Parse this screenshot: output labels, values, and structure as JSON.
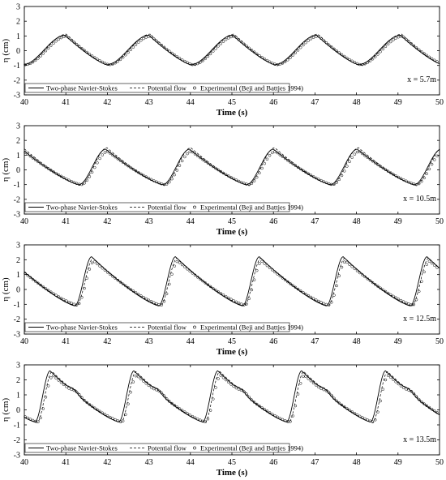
{
  "chart_data": [
    {
      "type": "line",
      "xlabel": "Time (s)",
      "ylabel": "η (cm)",
      "xlim": [
        40,
        50
      ],
      "ylim": [
        -3,
        3
      ],
      "xticks": [
        "40",
        "41",
        "42",
        "43",
        "44",
        "45",
        "46",
        "47",
        "48",
        "49",
        "50"
      ],
      "yticks": [
        "-3",
        "-2",
        "-1",
        "0",
        "1",
        "2",
        "3"
      ],
      "annotation": "x = 5.7m",
      "legend": {
        "position": "bottom-left",
        "entries": [
          "Two-phase Navier-Stokes",
          "Potential flow",
          "Experimental (Beji and Battjes 1994)"
        ]
      },
      "wave": {
        "period": 2.02,
        "first_peak_time": 40.98,
        "peak": 1.05,
        "trough": -0.95,
        "rise_fraction": 0.5,
        "secondary": 0
      },
      "series": [
        {
          "name": "Two-phase Navier-Stokes",
          "style": "solid",
          "peak": 1.05,
          "trough": -0.95,
          "shift": 0
        },
        {
          "name": "Potential flow",
          "style": "dashed",
          "peak": 1.12,
          "trough": -1.0,
          "shift": 0.03
        },
        {
          "name": "Experimental (Beji and Battjes 1994)",
          "style": "markers",
          "peak": 0.98,
          "trough": -0.95,
          "shift": 0.05
        }
      ]
    },
    {
      "type": "line",
      "xlabel": "Time (s)",
      "ylabel": "η (cm)",
      "xlim": [
        40,
        50
      ],
      "ylim": [
        -3,
        3
      ],
      "xticks": [
        "40",
        "41",
        "42",
        "43",
        "44",
        "45",
        "46",
        "47",
        "48",
        "49",
        "50"
      ],
      "yticks": [
        "-3",
        "-2",
        "-1",
        "0",
        "1",
        "2",
        "3"
      ],
      "annotation": "x = 10.5m",
      "legend": {
        "position": "bottom-left",
        "entries": [
          "Two-phase Navier-Stokes",
          "Potential flow",
          "Experimental (Beji and Battjes 1994)"
        ]
      },
      "wave": {
        "period": 2.02,
        "first_peak_time": 41.96,
        "peak": 1.4,
        "trough": -1.0,
        "rise_fraction": 0.32,
        "secondary": 0
      },
      "series": [
        {
          "name": "Two-phase Navier-Stokes",
          "style": "solid",
          "peak": 1.4,
          "trough": -1.0,
          "shift": 0
        },
        {
          "name": "Potential flow",
          "style": "dashed",
          "peak": 1.5,
          "trough": -1.05,
          "shift": 0.03
        },
        {
          "name": "Experimental (Beji and Battjes 1994)",
          "style": "markers",
          "peak": 1.25,
          "trough": -1.0,
          "shift": 0.05
        }
      ]
    },
    {
      "type": "line",
      "xlabel": "Time (s)",
      "ylabel": "η (cm)",
      "xlim": [
        40,
        50
      ],
      "ylim": [
        -3,
        3
      ],
      "xticks": [
        "40",
        "41",
        "42",
        "43",
        "44",
        "45",
        "46",
        "47",
        "48",
        "49",
        "50"
      ],
      "yticks": [
        "-3",
        "-2",
        "-1",
        "0",
        "1",
        "2",
        "3"
      ],
      "annotation": "x = 12.5m",
      "legend": {
        "position": "bottom-left",
        "entries": [
          "Two-phase Navier-Stokes",
          "Potential flow",
          "Experimental (Beji and Battjes 1994)"
        ]
      },
      "wave": {
        "period": 2.02,
        "first_peak_time": 41.62,
        "peak": 2.2,
        "trough": -1.1,
        "rise_fraction": 0.2,
        "secondary": 0
      },
      "series": [
        {
          "name": "Two-phase Navier-Stokes",
          "style": "solid",
          "peak": 2.2,
          "trough": -1.1,
          "shift": 0
        },
        {
          "name": "Potential flow",
          "style": "dashed",
          "peak": 2.1,
          "trough": -1.1,
          "shift": 0.04
        },
        {
          "name": "Experimental (Beji and Battjes 1994)",
          "style": "markers",
          "peak": 1.9,
          "trough": -1.05,
          "shift": 0.06
        }
      ]
    },
    {
      "type": "line",
      "xlabel": "Time (s)",
      "ylabel": "η (cm)",
      "xlim": [
        40,
        50
      ],
      "ylim": [
        -3,
        3
      ],
      "xticks": [
        "40",
        "41",
        "42",
        "43",
        "44",
        "45",
        "46",
        "47",
        "48",
        "49",
        "50"
      ],
      "yticks": [
        "-3",
        "-2",
        "-1",
        "0",
        "1",
        "2",
        "3"
      ],
      "annotation": "x = 13.5m",
      "legend": {
        "position": "bottom-left",
        "entries": [
          "Two-phase Navier-Stokes",
          "Potential flow",
          "Experimental (Beji and Battjes 1994)"
        ]
      },
      "wave": {
        "period": 2.02,
        "first_peak_time": 40.62,
        "peak": 2.6,
        "trough": -0.8,
        "rise_fraction": 0.18,
        "secondary": 0.2
      },
      "series": [
        {
          "name": "Two-phase Navier-Stokes",
          "style": "solid",
          "peak": 2.6,
          "trough": -0.8,
          "shift": 0
        },
        {
          "name": "Potential flow",
          "style": "dashed",
          "peak": 2.55,
          "trough": -0.85,
          "shift": 0.05
        },
        {
          "name": "Experimental (Beji and Battjes 1994)",
          "style": "markers",
          "peak": 2.3,
          "trough": -0.8,
          "shift": 0.07
        }
      ]
    }
  ]
}
